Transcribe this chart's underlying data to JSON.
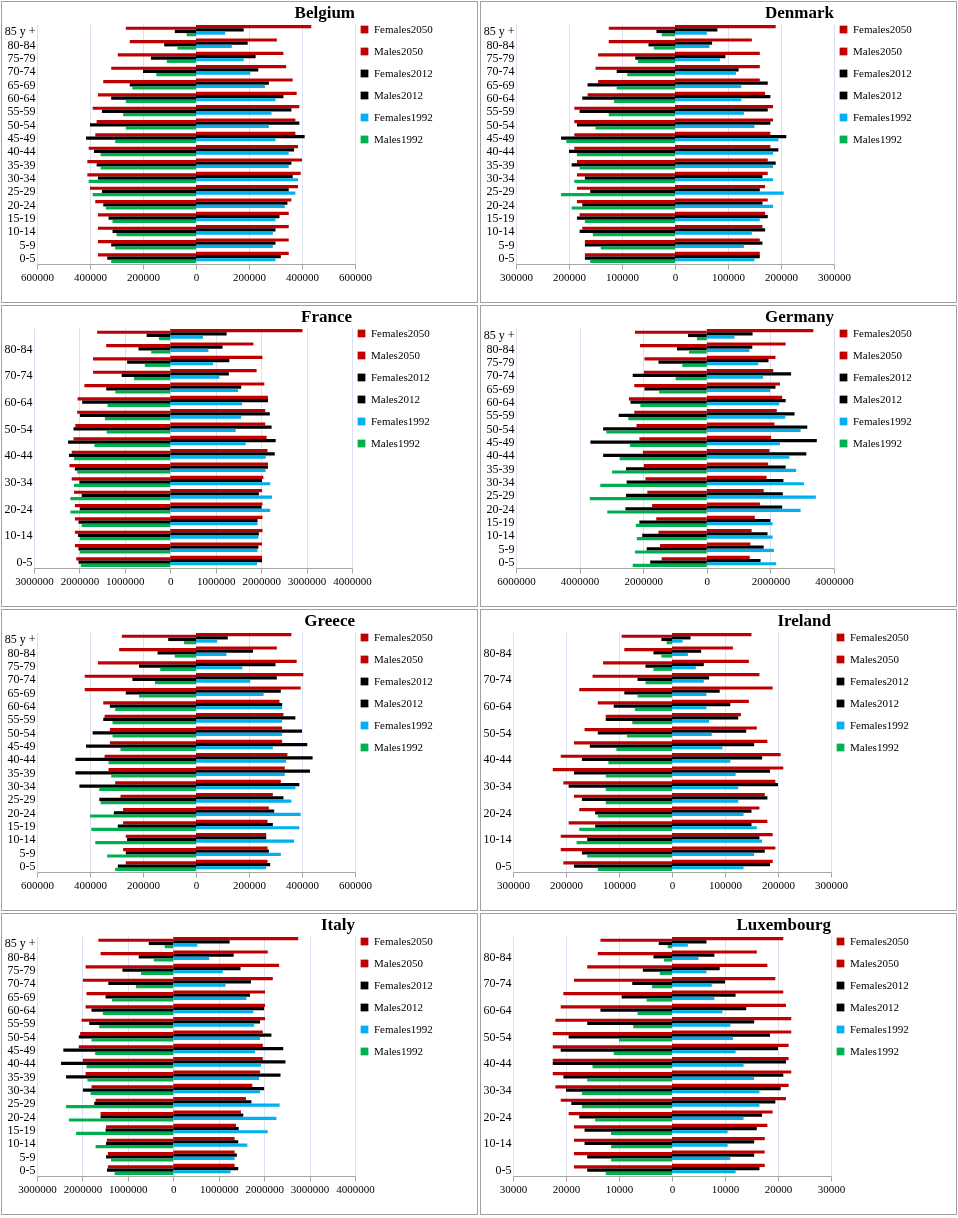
{
  "chart_data": [
    {
      "type": "bar",
      "orientation": "horizontal",
      "title": "Belgium",
      "legend": "right",
      "grid": "x",
      "categories": [
        "85 y +",
        "80-84",
        "75-79",
        "70-74",
        "65-69",
        "60-64",
        "55-59",
        "50-54",
        "45-49",
        "40-44",
        "35-39",
        "30-34",
        "25-29",
        "20-24",
        "15-19",
        "10-14",
        "5-9",
        "0-5"
      ],
      "xlim": [
        -600000,
        600000
      ],
      "xticks": [
        {
          "value": -600000,
          "label": "600000"
        },
        {
          "value": -400000,
          "label": "400000"
        },
        {
          "value": -200000,
          "label": "200000"
        },
        0,
        200000,
        400000,
        600000
      ],
      "series": [
        {
          "name": "Females2050",
          "color": "#c00000",
          "values": [
            435000,
            305000,
            330000,
            340000,
            365000,
            380000,
            390000,
            375000,
            375000,
            385000,
            400000,
            395000,
            385000,
            360000,
            350000,
            350000,
            350000,
            350000
          ]
        },
        {
          "name": "Males2050",
          "color": "#c00000",
          "values": [
            -265000,
            -250000,
            -295000,
            -320000,
            -350000,
            -370000,
            -390000,
            -375000,
            -380000,
            -405000,
            -410000,
            -410000,
            -400000,
            -380000,
            -370000,
            -370000,
            -370000,
            -370000
          ]
        },
        {
          "name": "Females2012",
          "color": "#000000",
          "values": [
            180000,
            195000,
            225000,
            235000,
            275000,
            330000,
            360000,
            390000,
            410000,
            370000,
            360000,
            365000,
            350000,
            345000,
            315000,
            300000,
            300000,
            320000
          ]
        },
        {
          "name": "Males2012",
          "color": "#000000",
          "values": [
            -80000,
            -120000,
            -170000,
            -200000,
            -250000,
            -320000,
            -355000,
            -400000,
            -415000,
            -385000,
            -375000,
            -370000,
            -355000,
            -350000,
            -330000,
            -315000,
            -320000,
            -335000
          ]
        },
        {
          "name": "Females1992",
          "color": "#00b0f0",
          "values": [
            110000,
            135000,
            180000,
            205000,
            260000,
            300000,
            285000,
            275000,
            300000,
            350000,
            350000,
            385000,
            375000,
            335000,
            300000,
            290000,
            290000,
            300000
          ]
        },
        {
          "name": "Males1992",
          "color": "#00b050",
          "values": [
            -35000,
            -70000,
            -110000,
            -150000,
            -240000,
            -265000,
            -275000,
            -265000,
            -305000,
            -360000,
            -360000,
            -405000,
            -390000,
            -340000,
            -315000,
            -300000,
            -305000,
            -320000
          ]
        }
      ]
    },
    {
      "type": "bar",
      "orientation": "horizontal",
      "title": "Denmark",
      "legend": "right",
      "grid": "x",
      "categories": [
        "85 y +",
        "80-84",
        "75-79",
        "70-74",
        "65-69",
        "60-64",
        "55-59",
        "50-54",
        "45-49",
        "40-44",
        "35-39",
        "30-34",
        "25-29",
        "20-24",
        "15-19",
        "10-14",
        "5-9",
        "0-5"
      ],
      "xlim": [
        -300000,
        300000
      ],
      "xticks": [
        {
          "value": -300000,
          "label": "300000"
        },
        {
          "value": -200000,
          "label": "200000"
        },
        {
          "value": -100000,
          "label": "100000"
        },
        0,
        100000,
        200000,
        300000
      ],
      "series": [
        {
          "name": "Females2050",
          "color": "#c00000",
          "values": [
            190000,
            145000,
            160000,
            160000,
            160000,
            170000,
            185000,
            185000,
            180000,
            180000,
            175000,
            175000,
            170000,
            175000,
            170000,
            165000,
            160000,
            160000
          ]
        },
        {
          "name": "Males2050",
          "color": "#c00000",
          "values": [
            -125000,
            -125000,
            -145000,
            -150000,
            -145000,
            -165000,
            -190000,
            -190000,
            -190000,
            -190000,
            -185000,
            -185000,
            -185000,
            -185000,
            -180000,
            -175000,
            -170000,
            -170000
          ]
        },
        {
          "name": "Females2012",
          "color": "#000000",
          "values": [
            80000,
            70000,
            95000,
            120000,
            175000,
            180000,
            175000,
            180000,
            210000,
            195000,
            190000,
            165000,
            160000,
            165000,
            175000,
            170000,
            165000,
            160000
          ]
        },
        {
          "name": "Males2012",
          "color": "#000000",
          "values": [
            -35000,
            -50000,
            -75000,
            -110000,
            -165000,
            -175000,
            -180000,
            -185000,
            -215000,
            -200000,
            -195000,
            -170000,
            -160000,
            -175000,
            -185000,
            -180000,
            -170000,
            -170000
          ]
        },
        {
          "name": "Females1992",
          "color": "#00b0f0",
          "values": [
            60000,
            65000,
            85000,
            115000,
            125000,
            125000,
            130000,
            150000,
            195000,
            185000,
            185000,
            185000,
            205000,
            185000,
            160000,
            145000,
            130000,
            150000
          ]
        },
        {
          "name": "Males1992",
          "color": "#00b050",
          "values": [
            -25000,
            -40000,
            -70000,
            -90000,
            -110000,
            -115000,
            -125000,
            -150000,
            -205000,
            -185000,
            -180000,
            -190000,
            -215000,
            -195000,
            -170000,
            -155000,
            -140000,
            -160000
          ]
        }
      ]
    },
    {
      "type": "bar",
      "orientation": "horizontal",
      "title": "France",
      "legend": "right",
      "grid": "x",
      "categories": [
        null,
        "80-84",
        null,
        "70-74",
        null,
        "60-64",
        null,
        "50-54",
        null,
        "40-44",
        null,
        "30-34",
        null,
        "20-24",
        null,
        "10-14",
        null,
        "0-5"
      ],
      "xlim": [
        -3000000,
        4000000
      ],
      "xticks": [
        {
          "value": -3000000,
          "label": "3000000"
        },
        {
          "value": -2000000,
          "label": "2000000"
        },
        {
          "value": -1000000,
          "label": "1000000"
        },
        0,
        1000000,
        2000000,
        3000000,
        4000000
      ],
      "series": [
        {
          "name": "Females2050",
          "color": "#c00000",
          "values": [
            2910000,
            1830000,
            2030000,
            1900000,
            2070000,
            2150000,
            2090000,
            2090000,
            2120000,
            2140000,
            2150000,
            2050000,
            2020000,
            2030000,
            2030000,
            2030000,
            2020000,
            2020000
          ]
        },
        {
          "name": "Males2050",
          "color": "#c00000",
          "values": [
            -1610000,
            -1410000,
            -1700000,
            -1700000,
            -1890000,
            -2040000,
            -2050000,
            -2090000,
            -2130000,
            -2170000,
            -2220000,
            -2170000,
            -2120000,
            -2100000,
            -2100000,
            -2100000,
            -2100000,
            -2070000
          ]
        },
        {
          "name": "Females2012",
          "color": "#000000",
          "values": [
            1240000,
            1150000,
            1300000,
            1290000,
            1560000,
            2150000,
            2190000,
            2230000,
            2320000,
            2300000,
            2150000,
            2020000,
            1950000,
            2010000,
            1920000,
            1950000,
            1940000,
            2020000
          ]
        },
        {
          "name": "Males2012",
          "color": "#000000",
          "values": [
            -520000,
            -700000,
            -950000,
            -1070000,
            -1410000,
            -1940000,
            -1990000,
            -2130000,
            -2250000,
            -2230000,
            -2100000,
            -2000000,
            -1950000,
            -1990000,
            -2020000,
            -2030000,
            -2020000,
            -2020000
          ]
        },
        {
          "name": "Females1992",
          "color": "#00b0f0",
          "values": [
            720000,
            840000,
            940000,
            1080000,
            1490000,
            1580000,
            1560000,
            1440000,
            1660000,
            2100000,
            2100000,
            2200000,
            2240000,
            2200000,
            1920000,
            1940000,
            1920000,
            1910000
          ]
        },
        {
          "name": "Males1992",
          "color": "#00b050",
          "values": [
            -250000,
            -420000,
            -560000,
            -800000,
            -1210000,
            -1380000,
            -1440000,
            -1400000,
            -1670000,
            -2120000,
            -2050000,
            -2120000,
            -2200000,
            -2200000,
            -1950000,
            -1990000,
            -1990000,
            -1970000
          ]
        }
      ]
    },
    {
      "type": "bar",
      "orientation": "horizontal",
      "title": "Germany",
      "legend": "right",
      "grid": "x",
      "categories": [
        "85 y +",
        "80-84",
        "75-79",
        "70-74",
        "65-69",
        "60-64",
        "55-59",
        "50-54",
        "45-49",
        "40-44",
        "35-39",
        "30-34",
        "25-29",
        "20-24",
        "15-19",
        "10-14",
        "5-9",
        "0-5"
      ],
      "xlim": [
        -6000000,
        4000000
      ],
      "xticks": [
        {
          "value": -6000000,
          "label": "6000000"
        },
        {
          "value": -4000000,
          "label": "4000000"
        },
        {
          "value": -2000000,
          "label": "2000000"
        },
        0,
        2000000,
        4000000
      ],
      "series": [
        {
          "name": "Females2050",
          "color": "#c00000",
          "values": [
            3350000,
            2480000,
            2160000,
            2090000,
            2300000,
            2370000,
            2200000,
            2130000,
            2020000,
            1970000,
            1930000,
            1880000,
            1790000,
            1670000,
            1510000,
            1410000,
            1370000,
            1350000
          ]
        },
        {
          "name": "Males2050",
          "color": "#c00000",
          "values": [
            -2260000,
            -2100000,
            -1960000,
            -1980000,
            -2280000,
            -2450000,
            -2280000,
            -2210000,
            -2120000,
            -2010000,
            -1980000,
            -1930000,
            -1870000,
            -1720000,
            -1590000,
            -1520000,
            -1470000,
            -1420000
          ]
        },
        {
          "name": "Females2012",
          "color": "#000000",
          "values": [
            1440000,
            1430000,
            1940000,
            2650000,
            2160000,
            2480000,
            2760000,
            3160000,
            3460000,
            3130000,
            2480000,
            2410000,
            2390000,
            2370000,
            2000000,
            1910000,
            1790000,
            1690000
          ]
        },
        {
          "name": "Males2012",
          "color": "#000000",
          "values": [
            -590000,
            -940000,
            -1520000,
            -2330000,
            -1960000,
            -2400000,
            -2770000,
            -3260000,
            -3660000,
            -3260000,
            -2540000,
            -2520000,
            -2540000,
            -2560000,
            -2120000,
            -2030000,
            -1890000,
            -1780000
          ]
        },
        {
          "name": "Females1992",
          "color": "#00b0f0",
          "values": [
            870000,
            1340000,
            1620000,
            1770000,
            1990000,
            2280000,
            2470000,
            2950000,
            2300000,
            2600000,
            2810000,
            3060000,
            3430000,
            2950000,
            2070000,
            2070000,
            2110000,
            2180000
          ]
        },
        {
          "name": "Males1992",
          "color": "#00b050",
          "values": [
            -310000,
            -560000,
            -770000,
            -980000,
            -1500000,
            -2090000,
            -2470000,
            -3160000,
            -2420000,
            -2740000,
            -2980000,
            -3350000,
            -3680000,
            -3130000,
            -2230000,
            -2200000,
            -2260000,
            -2330000
          ]
        }
      ]
    },
    {
      "type": "bar",
      "orientation": "horizontal",
      "title": "Greece",
      "legend": "right",
      "grid": "x",
      "categories": [
        "85 y +",
        "80-84",
        "75-79",
        "70-74",
        "65-69",
        "60-64",
        "55-59",
        "50-54",
        "45-49",
        "40-44",
        "35-39",
        "30-34",
        "25-29",
        "20-24",
        "15-19",
        "10-14",
        "5-9",
        "0-5"
      ],
      "xlim": [
        -600000,
        600000
      ],
      "xticks": [
        {
          "value": -600000,
          "label": "600000"
        },
        {
          "value": -400000,
          "label": "400000"
        },
        {
          "value": -200000,
          "label": "200000"
        },
        0,
        200000,
        400000,
        600000
      ],
      "series": [
        {
          "name": "Females2050",
          "color": "#c00000",
          "values": [
            360000,
            305000,
            380000,
            405000,
            395000,
            315000,
            330000,
            325000,
            325000,
            345000,
            335000,
            320000,
            290000,
            275000,
            270000,
            265000,
            270000,
            270000
          ]
        },
        {
          "name": "Males2050",
          "color": "#c00000",
          "values": [
            -280000,
            -290000,
            -370000,
            -420000,
            -420000,
            -350000,
            -345000,
            -325000,
            -325000,
            -345000,
            -330000,
            -305000,
            -285000,
            -275000,
            -275000,
            -265000,
            -275000,
            -265000
          ]
        },
        {
          "name": "Females2012",
          "color": "#000000",
          "values": [
            120000,
            215000,
            300000,
            305000,
            320000,
            325000,
            375000,
            400000,
            420000,
            440000,
            430000,
            390000,
            330000,
            295000,
            290000,
            265000,
            275000,
            280000
          ]
        },
        {
          "name": "Males2012",
          "color": "#000000",
          "values": [
            -105000,
            -145000,
            -215000,
            -240000,
            -265000,
            -325000,
            -350000,
            -390000,
            -415000,
            -455000,
            -455000,
            -440000,
            -365000,
            -310000,
            -295000,
            -260000,
            -265000,
            -295000
          ]
        },
        {
          "name": "Females1992",
          "color": "#00b0f0",
          "values": [
            80000,
            115000,
            175000,
            205000,
            255000,
            325000,
            325000,
            325000,
            290000,
            340000,
            335000,
            375000,
            360000,
            395000,
            390000,
            370000,
            320000,
            265000
          ]
        },
        {
          "name": "Males1992",
          "color": "#00b050",
          "values": [
            -45000,
            -80000,
            -135000,
            -155000,
            -215000,
            -305000,
            -315000,
            -315000,
            -285000,
            -330000,
            -320000,
            -365000,
            -360000,
            -400000,
            -395000,
            -380000,
            -335000,
            -305000
          ]
        }
      ]
    },
    {
      "type": "bar",
      "orientation": "horizontal",
      "title": "Ireland",
      "legend": "right",
      "grid": "x",
      "categories": [
        null,
        "80-84",
        null,
        "70-74",
        null,
        "60-64",
        null,
        "50-54",
        null,
        "40-44",
        null,
        "30-34",
        null,
        "20-24",
        null,
        "10-14",
        null,
        "0-5"
      ],
      "xlim": [
        -300000,
        300000
      ],
      "xticks": [
        {
          "value": -300000,
          "label": "300000"
        },
        {
          "value": -200000,
          "label": "200000"
        },
        {
          "value": -100000,
          "label": "100000"
        },
        0,
        100000,
        200000,
        300000
      ],
      "series": [
        {
          "name": "Females2050",
          "color": "#c00000",
          "values": [
            150000,
            115000,
            145000,
            165000,
            190000,
            145000,
            130000,
            160000,
            180000,
            205000,
            210000,
            195000,
            175000,
            165000,
            180000,
            190000,
            195000,
            190000
          ]
        },
        {
          "name": "Males2050",
          "color": "#c00000",
          "values": [
            -95000,
            -90000,
            -130000,
            -150000,
            -175000,
            -140000,
            -125000,
            -165000,
            -185000,
            -210000,
            -225000,
            -205000,
            -185000,
            -175000,
            -195000,
            -210000,
            -210000,
            -205000
          ]
        },
        {
          "name": "Females2012",
          "color": "#000000",
          "values": [
            35000,
            55000,
            60000,
            70000,
            90000,
            110000,
            125000,
            140000,
            155000,
            170000,
            185000,
            200000,
            180000,
            150000,
            150000,
            165000,
            175000,
            185000
          ]
        },
        {
          "name": "Males2012",
          "color": "#000000",
          "values": [
            -20000,
            -35000,
            -50000,
            -65000,
            -90000,
            -110000,
            -125000,
            -140000,
            -155000,
            -170000,
            -185000,
            -195000,
            -170000,
            -145000,
            -145000,
            -160000,
            -170000,
            -185000
          ]
        },
        {
          "name": "Females1992",
          "color": "#00b0f0",
          "values": [
            20000,
            30000,
            45000,
            60000,
            65000,
            65000,
            70000,
            75000,
            95000,
            110000,
            120000,
            125000,
            125000,
            135000,
            160000,
            170000,
            155000,
            135000
          ]
        },
        {
          "name": "Males1992",
          "color": "#00b050",
          "values": [
            -10000,
            -20000,
            -35000,
            -50000,
            -65000,
            -70000,
            -75000,
            -85000,
            -105000,
            -120000,
            -125000,
            -125000,
            -125000,
            -140000,
            -175000,
            -180000,
            -160000,
            -140000
          ]
        }
      ]
    },
    {
      "type": "bar",
      "orientation": "horizontal",
      "title": "Italy",
      "legend": "right",
      "grid": "x",
      "categories": [
        "85 y +",
        "80-84",
        "75-79",
        "70-74",
        "65-69",
        "60-64",
        "55-59",
        "50-54",
        "45-49",
        "40-44",
        "35-39",
        "30-34",
        "25-29",
        "20-24",
        "15-19",
        "10-14",
        "5-9",
        "0-5"
      ],
      "xlim": [
        -3000000,
        4000000
      ],
      "xticks": [
        {
          "value": -3000000,
          "label": "3000000"
        },
        {
          "value": -2000000,
          "label": "2000000"
        },
        {
          "value": -1000000,
          "label": "1000000"
        },
        0,
        1000000,
        2000000,
        3000000,
        4000000
      ],
      "series": [
        {
          "name": "Females2050",
          "color": "#c00000",
          "values": [
            2750000,
            2080000,
            2330000,
            2190000,
            2020000,
            2020000,
            2020000,
            1970000,
            1970000,
            1970000,
            1910000,
            1740000,
            1600000,
            1490000,
            1380000,
            1350000,
            1350000,
            1350000
          ]
        },
        {
          "name": "Males2050",
          "color": "#c00000",
          "values": [
            -1650000,
            -1600000,
            -1930000,
            -1990000,
            -1910000,
            -1930000,
            -2020000,
            -2050000,
            -2080000,
            -1990000,
            -1930000,
            -1800000,
            -1710000,
            -1600000,
            -1480000,
            -1460000,
            -1440000,
            -1440000
          ]
        },
        {
          "name": "Females2012",
          "color": "#000000",
          "values": [
            1240000,
            1330000,
            1480000,
            1710000,
            1690000,
            2000000,
            1910000,
            2160000,
            2420000,
            2470000,
            2360000,
            2000000,
            1720000,
            1540000,
            1440000,
            1430000,
            1400000,
            1430000
          ]
        },
        {
          "name": "Males2012",
          "color": "#000000",
          "values": [
            -540000,
            -760000,
            -1120000,
            -1430000,
            -1490000,
            -1800000,
            -1850000,
            -2080000,
            -2420000,
            -2470000,
            -2360000,
            -1990000,
            -1740000,
            -1600000,
            -1490000,
            -1480000,
            -1480000,
            -1460000
          ]
        },
        {
          "name": "Females1992",
          "color": "#00b0f0",
          "values": [
            530000,
            790000,
            1090000,
            1150000,
            1610000,
            1760000,
            1780000,
            1910000,
            1800000,
            1930000,
            1890000,
            1910000,
            2340000,
            2270000,
            2080000,
            1630000,
            1350000,
            1260000
          ]
        },
        {
          "name": "Males1992",
          "color": "#00b050",
          "values": [
            -190000,
            -430000,
            -710000,
            -820000,
            -1350000,
            -1550000,
            -1630000,
            -1800000,
            -1720000,
            -1910000,
            -1890000,
            -1820000,
            -2360000,
            -2300000,
            -2140000,
            -1710000,
            -1370000,
            -1290000
          ]
        }
      ]
    },
    {
      "type": "bar",
      "orientation": "horizontal",
      "title": "Luxembourg",
      "legend": "right",
      "grid": "x",
      "categories": [
        null,
        "80-84",
        null,
        "70-74",
        null,
        "60-64",
        null,
        "50-54",
        null,
        "40-44",
        null,
        "30-34",
        null,
        "20-24",
        null,
        "10-14",
        null,
        "0-5"
      ],
      "xlim": [
        -30000,
        30000
      ],
      "xticks": [
        {
          "value": -30000,
          "label": "30000"
        },
        {
          "value": -20000,
          "label": "20000"
        },
        {
          "value": -10000,
          "label": "10000"
        },
        0,
        10000,
        20000,
        30000
      ],
      "series": [
        {
          "name": "Females2050",
          "color": "#c00000",
          "values": [
            21000,
            16000,
            18000,
            19500,
            21000,
            21500,
            22500,
            22500,
            22000,
            22000,
            22500,
            22000,
            21500,
            19000,
            18000,
            17500,
            17500,
            17500
          ]
        },
        {
          "name": "Males2050",
          "color": "#c00000",
          "values": [
            -13500,
            -14000,
            -16000,
            -18500,
            -20500,
            -21000,
            -22000,
            -22500,
            -22500,
            -22500,
            -22500,
            -22000,
            -21000,
            -19500,
            -18500,
            -18500,
            -18500,
            -18500
          ]
        },
        {
          "name": "Females2012",
          "color": "#000000",
          "values": [
            6500,
            8000,
            9000,
            10000,
            12000,
            14000,
            15500,
            18500,
            20000,
            21500,
            21000,
            20500,
            19500,
            17000,
            16000,
            15500,
            15500,
            16500
          ]
        },
        {
          "name": "Males2012",
          "color": "#000000",
          "values": [
            -2500,
            -3500,
            -5500,
            -7500,
            -9500,
            -13500,
            -16000,
            -19500,
            -21000,
            -22500,
            -20500,
            -20000,
            -19000,
            -17500,
            -16500,
            -16500,
            -16000,
            -16000
          ]
        },
        {
          "name": "Females1992",
          "color": "#00b0f0",
          "values": [
            3000,
            5000,
            6500,
            7500,
            8000,
            9500,
            11000,
            11500,
            12000,
            13500,
            15500,
            16500,
            16500,
            13500,
            10500,
            10500,
            11000,
            12000
          ]
        },
        {
          "name": "Males1992",
          "color": "#00b050",
          "values": [
            -800,
            -1500,
            -2300,
            -3800,
            -4800,
            -6500,
            -7300,
            -10000,
            -11000,
            -15000,
            -16000,
            -17000,
            -17000,
            -14500,
            -11500,
            -11500,
            -11500,
            -12500
          ]
        }
      ]
    }
  ]
}
